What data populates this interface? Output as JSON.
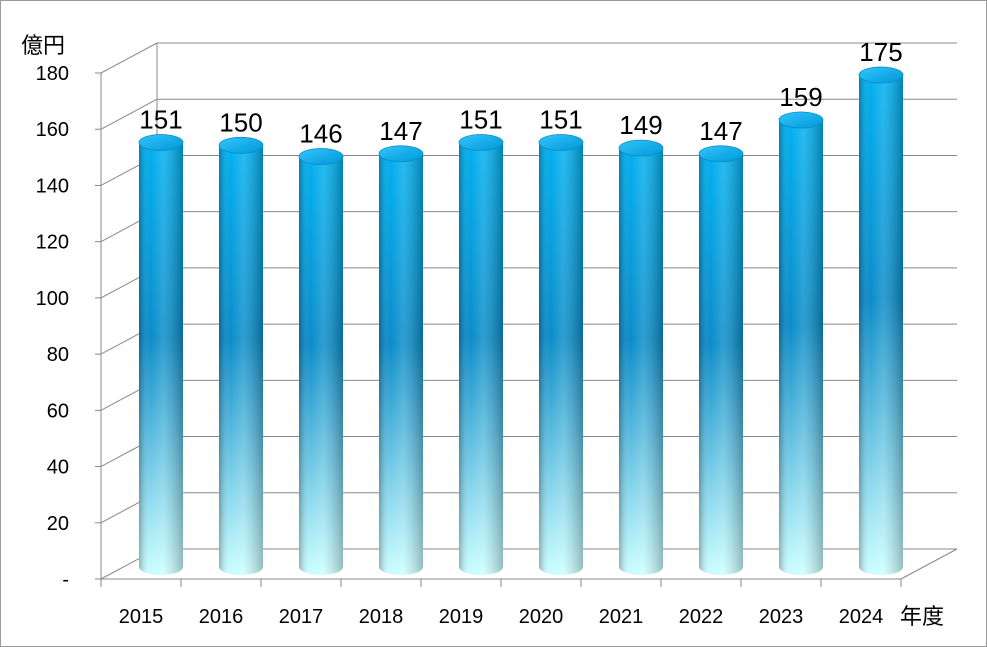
{
  "chart_data": {
    "type": "bar",
    "style": "3d-cylinder",
    "categories": [
      "2015",
      "2016",
      "2017",
      "2018",
      "2019",
      "2020",
      "2021",
      "2022",
      "2023",
      "2024"
    ],
    "values": [
      151,
      150,
      146,
      147,
      151,
      151,
      149,
      147,
      159,
      175
    ],
    "data_labels": [
      "151",
      "150",
      "146",
      "147",
      "151",
      "151",
      "149",
      "147",
      "159",
      "175"
    ],
    "y_unit_label": "億円",
    "x_unit_label": "年度",
    "ylim": [
      0,
      180
    ],
    "y_ticks": [
      {
        "value": 0,
        "label": "-"
      },
      {
        "value": 20,
        "label": "20"
      },
      {
        "value": 40,
        "label": "40"
      },
      {
        "value": 60,
        "label": "60"
      },
      {
        "value": 80,
        "label": "80"
      },
      {
        "value": 100,
        "label": "100"
      },
      {
        "value": 120,
        "label": "120"
      },
      {
        "value": 140,
        "label": "140"
      },
      {
        "value": 160,
        "label": "160"
      },
      {
        "value": 180,
        "label": "180"
      }
    ],
    "grid": true,
    "legend": "none",
    "colors": {
      "bar_top": "#00b0f0",
      "bar_mid": "#0a8cc8",
      "bar_bottom": "#ccffff",
      "gridline": "#888888",
      "axis": "#888888"
    }
  }
}
